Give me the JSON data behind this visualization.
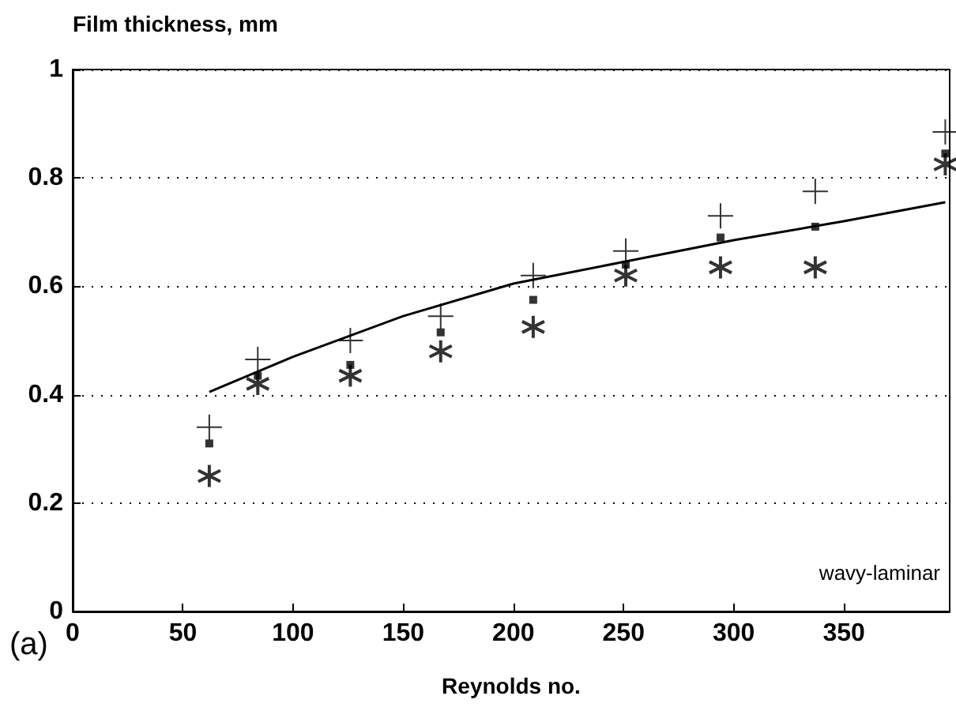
{
  "chart_data": {
    "type": "scatter",
    "xlabel": "Reynolds no.",
    "ylabel": "Film thickness, mm",
    "xlim": [
      0,
      398
    ],
    "xticks": [
      0,
      50,
      100,
      150,
      200,
      250,
      300,
      350
    ],
    "ylim": [
      0,
      1
    ],
    "yticks": [
      0,
      0.2,
      0.4,
      0.6,
      0.8,
      1
    ],
    "grid": "y",
    "annotations": [
      "(a)",
      "wavy-laminar"
    ],
    "series": [
      {
        "color": "#000000",
        "marker": "cross",
        "x": [
          62,
          84,
          126,
          167,
          209,
          251,
          294,
          337,
          396
        ],
        "values": [
          0.34,
          0.465,
          0.5,
          0.545,
          0.62,
          0.665,
          0.73,
          0.775,
          0.885
        ]
      },
      {
        "color": "#000000",
        "marker": "square",
        "x": [
          62,
          84,
          126,
          167,
          209,
          251,
          294,
          337,
          396
        ],
        "values": [
          0.31,
          0.435,
          0.455,
          0.515,
          0.575,
          0.64,
          0.69,
          0.71,
          0.845
        ]
      },
      {
        "color": "#000000",
        "x": [
          62,
          84,
          126,
          167,
          209,
          251,
          294,
          337,
          396
        ],
        "values": [
          0.25,
          0.42,
          0.435,
          0.48,
          0.525,
          0.62,
          0.635,
          0.635,
          0.825
        ]
      },
      {
        "type": "line",
        "color": "#000000",
        "marker": "none",
        "line_style": "solid",
        "x": [
          62,
          100,
          150,
          200,
          250,
          300,
          350,
          396
        ],
        "values": [
          0.405,
          0.47,
          0.545,
          0.605,
          0.645,
          0.685,
          0.72,
          0.755
        ]
      }
    ]
  }
}
